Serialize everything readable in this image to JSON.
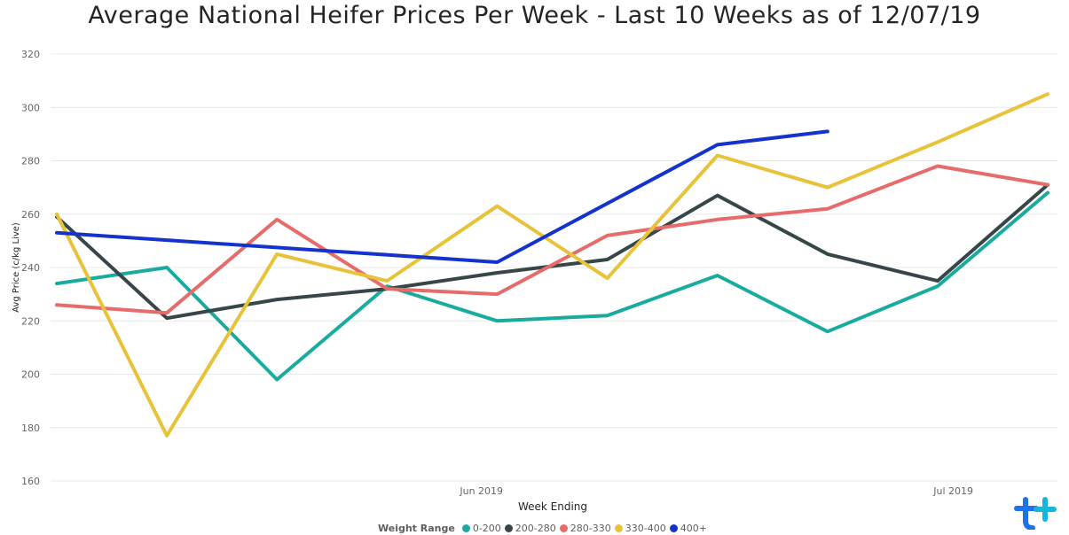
{
  "title": "Average National Heifer Prices Per Week - Last 10 Weeks as of 12/07/19",
  "chart_data": {
    "type": "line",
    "title": "Average National Heifer Prices Per Week - Last 10 Weeks as of 12/07/19",
    "xlabel": "Week Ending",
    "ylabel": "Avg Price (c/kg Live)",
    "ylim": [
      160,
      320
    ],
    "yticks": [
      160,
      180,
      200,
      220,
      240,
      260,
      280,
      300,
      320
    ],
    "x": [
      "2019-05-04",
      "2019-05-11",
      "2019-05-18",
      "2019-05-25",
      "2019-06-01",
      "2019-06-08",
      "2019-06-15",
      "2019-06-22",
      "2019-06-29",
      "2019-07-06"
    ],
    "x_tick_labels": [
      {
        "label": "Jun 2019",
        "date": "2019-05-31"
      },
      {
        "label": "Jul 2019",
        "date": "2019-06-30"
      }
    ],
    "grid": true,
    "legend_title": "Weight Range",
    "legend_position": "bottom",
    "series": [
      {
        "name": "0-200",
        "color": "#1AAB9F",
        "values": [
          234,
          240,
          198,
          233,
          220,
          222,
          237,
          216,
          233,
          268
        ]
      },
      {
        "name": "200-280",
        "color": "#374649",
        "values": [
          259,
          221,
          228,
          232,
          238,
          243,
          267,
          245,
          235,
          271
        ]
      },
      {
        "name": "280-330",
        "color": "#E66C6C",
        "values": [
          226,
          223,
          258,
          232,
          230,
          252,
          258,
          262,
          278,
          271
        ]
      },
      {
        "name": "330-400",
        "color": "#E8C33A",
        "values": [
          260,
          177,
          245,
          235,
          263,
          236,
          282,
          270,
          287,
          305
        ]
      },
      {
        "name": "400+",
        "color": "#1433CC",
        "values": [
          253,
          null,
          null,
          null,
          242,
          null,
          286,
          291,
          null,
          null
        ]
      }
    ]
  }
}
